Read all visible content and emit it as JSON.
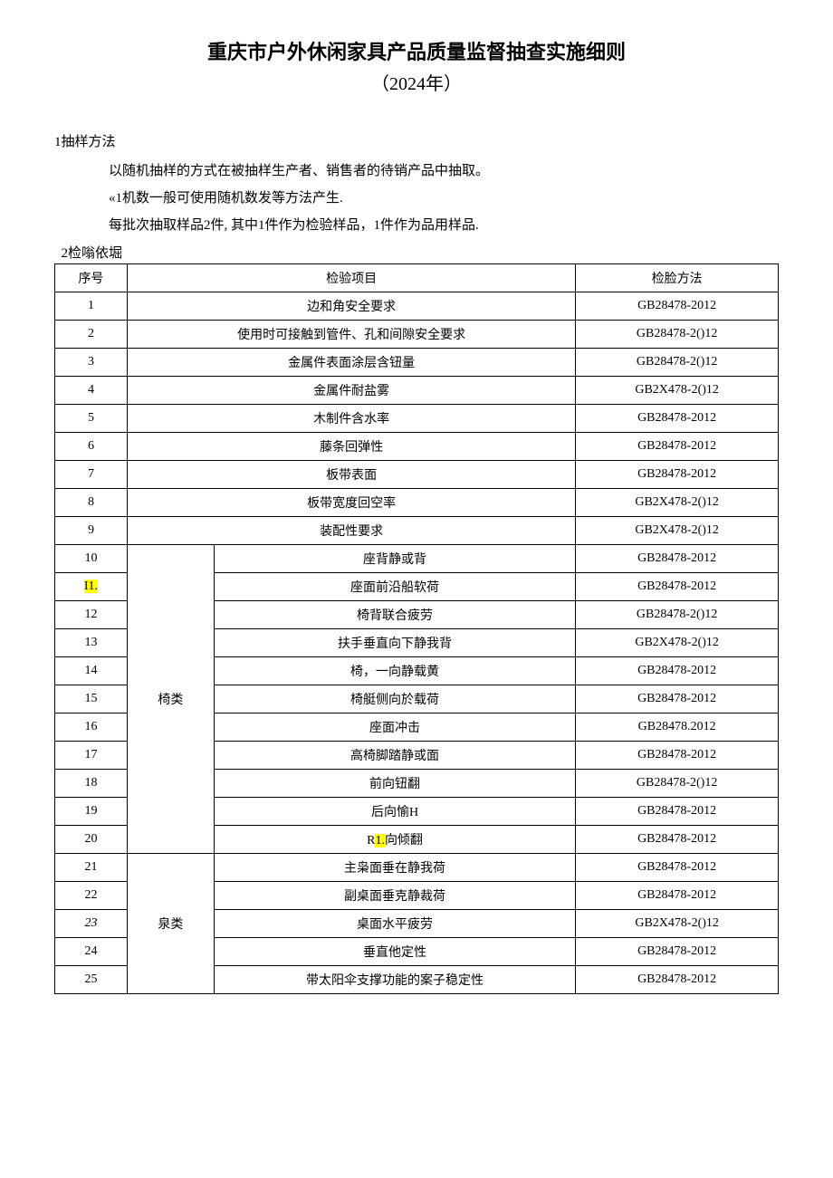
{
  "title": "重庆市户外休闲家具产品质量监督抽查实施细则",
  "subtitle": "（2024年）",
  "section1": {
    "heading": "1抽样方法",
    "p1": "以随机抽样的方式在被抽样生产者、销售者的待销产品中抽取。",
    "p2": "«1机数一般可使用随机数发等方法产生.",
    "p3": "每批次抽取样品2件, 其中1件作为检验样品，1件作为品用样品."
  },
  "section2": {
    "heading": "2检嗡依堀"
  },
  "table": {
    "headers": {
      "seq": "序号",
      "item": "检验项目",
      "method": "检脸方法"
    },
    "simpleRows": [
      {
        "seq": "1",
        "item": "边和角安全要求",
        "method": "GB28478-2012"
      },
      {
        "seq": "2",
        "item": "使用时可接触到管件、孔和间隙安全要求",
        "method": "GB28478-2()12"
      },
      {
        "seq": "3",
        "item": "金属件表面涂层含钮量",
        "method": "GB28478-2()12"
      },
      {
        "seq": "4",
        "item": "金属件耐盐雾",
        "method": "GB2X478-2()12"
      },
      {
        "seq": "5",
        "item": "木制件含水率",
        "method": "GB28478-2012"
      },
      {
        "seq": "6",
        "item": "藤条回弹性",
        "method": "GB28478-2012"
      },
      {
        "seq": "7",
        "item": "板带表面",
        "method": "GB28478-2012"
      },
      {
        "seq": "8",
        "item": "板带宽度回空率",
        "method": "GB2X478-2()12"
      },
      {
        "seq": "9",
        "item": "装配性要求",
        "method": "GB2X478-2()12"
      }
    ],
    "chairGroup": {
      "category": "椅类",
      "rows": [
        {
          "seq": "10",
          "item": "座背静或背",
          "method": "GB28478-2012"
        },
        {
          "seq": "I1.",
          "hl": true,
          "item": "座面前沿船软荷",
          "method": "GB28478-2012"
        },
        {
          "seq": "12",
          "item": "椅背联合疲劳",
          "method": "GB28478-2()12"
        },
        {
          "seq": "13",
          "item": "扶手垂直向下静我背",
          "method": "GB2X478-2()12"
        },
        {
          "seq": "14",
          "item": "椅，一向静载黄",
          "method": "GB28478-2012"
        },
        {
          "seq": "15",
          "item": "椅艇侧向於载荷",
          "method": "GB28478-2012"
        },
        {
          "seq": "16",
          "item": "座面冲击",
          "method": "GB28478.2012"
        },
        {
          "seq": "17",
          "item": "高椅脚踏静或面",
          "method": "GB28478-2012"
        },
        {
          "seq": "18",
          "item": "前向钮翻",
          "method": "GB28478-2()12"
        },
        {
          "seq": "19",
          "item": "后向愉H",
          "method": "GB28478-2012"
        },
        {
          "seq": "20",
          "item_pre": "R",
          "item_hl": "1.",
          "item_post": "向倾翻",
          "method": "GB28478-2012"
        }
      ]
    },
    "tableGroup": {
      "category": "泉类",
      "rows": [
        {
          "seq": "21",
          "item": "主枭面垂在静我荷",
          "method": "GB28478-2012"
        },
        {
          "seq": "22",
          "item": "副桌面垂克静裁荷",
          "method": "GB28478-2012"
        },
        {
          "seq": "23",
          "italic": true,
          "item": "桌面水平疲劳",
          "method": "GB2X478-2()12"
        },
        {
          "seq": "24",
          "item": "垂直他定性",
          "method": "GB28478-2012"
        },
        {
          "seq": "25",
          "item": "带太阳伞支撑功能的案子稳定性",
          "method": "GB28478-2012"
        }
      ]
    }
  }
}
